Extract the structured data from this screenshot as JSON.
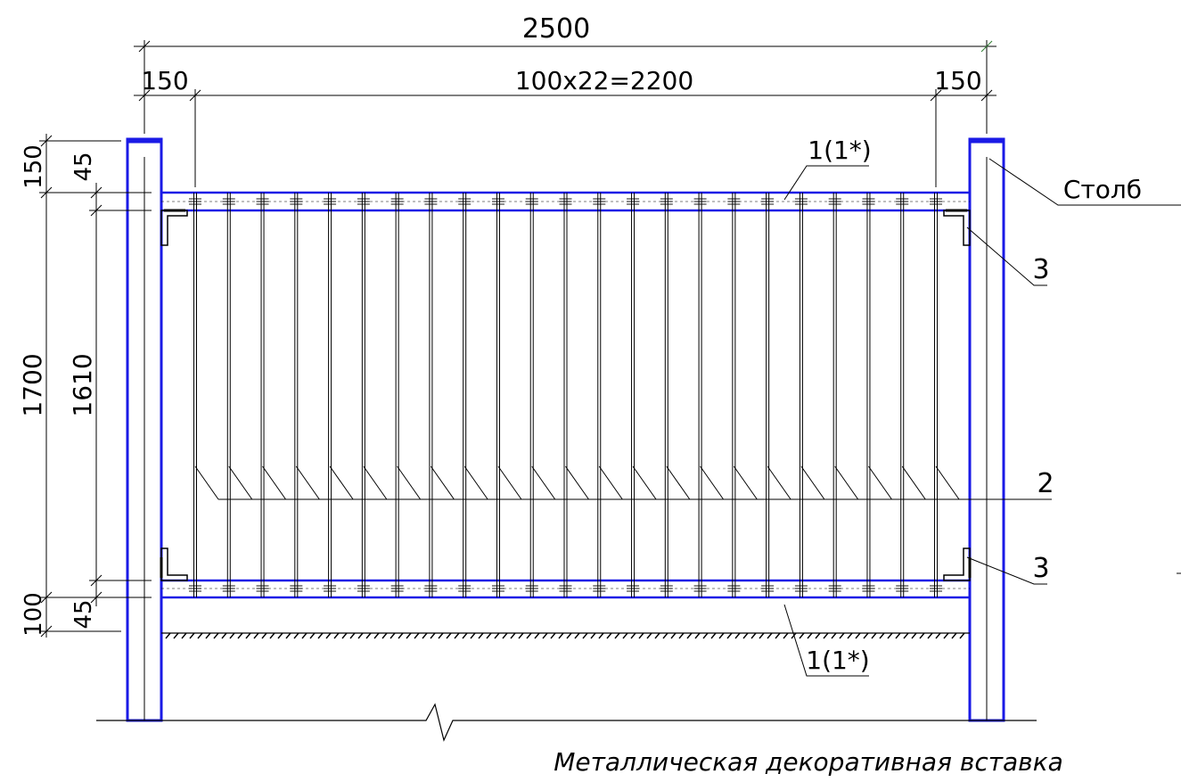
{
  "dimensions": {
    "total_width": "2500",
    "left_post_width": "150",
    "span": "100x22=2200",
    "right_post_width": "150",
    "height_total": "1700",
    "height_inner": "1610",
    "top_150": "150",
    "top_45": "45",
    "bottom_100": "100",
    "bottom_45": "45"
  },
  "callouts": {
    "rail_top": "1(1*)",
    "post": "Столб",
    "bracket_top": "3",
    "bar": "2",
    "bracket_bottom": "3",
    "rail_bottom": "1(1*)"
  },
  "caption": "Металлическая декоративная вставка",
  "colors": {
    "line": "#000000",
    "post_outline": "#1a1ae6",
    "accent": "#2f7d32"
  },
  "bars_count": 23
}
